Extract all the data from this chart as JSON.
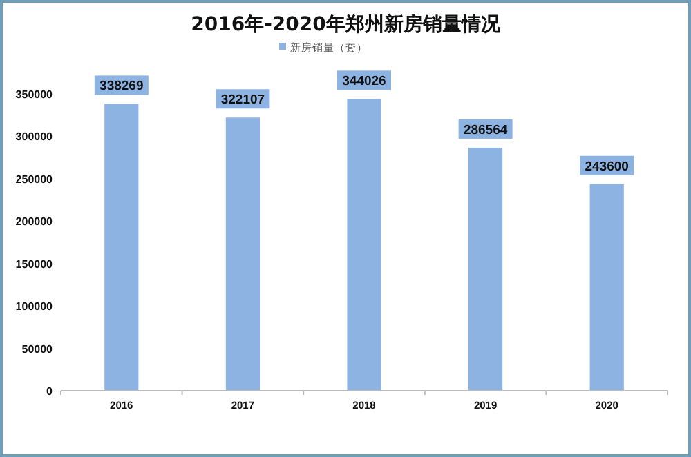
{
  "chart_data": {
    "type": "bar",
    "title": "2016年-2020年郑州新房销量情况",
    "categories": [
      "2016",
      "2017",
      "2018",
      "2019",
      "2020"
    ],
    "series": [
      {
        "name": "新房销量（套）",
        "color": "#8db3e2",
        "values": [
          338269,
          322107,
          344026,
          286564,
          243600
        ]
      }
    ],
    "ylim": [
      0,
      350000
    ],
    "yticks": [
      0,
      50000,
      100000,
      150000,
      200000,
      250000,
      300000,
      350000
    ],
    "grid": false,
    "legend": "top",
    "data_labels": true
  }
}
